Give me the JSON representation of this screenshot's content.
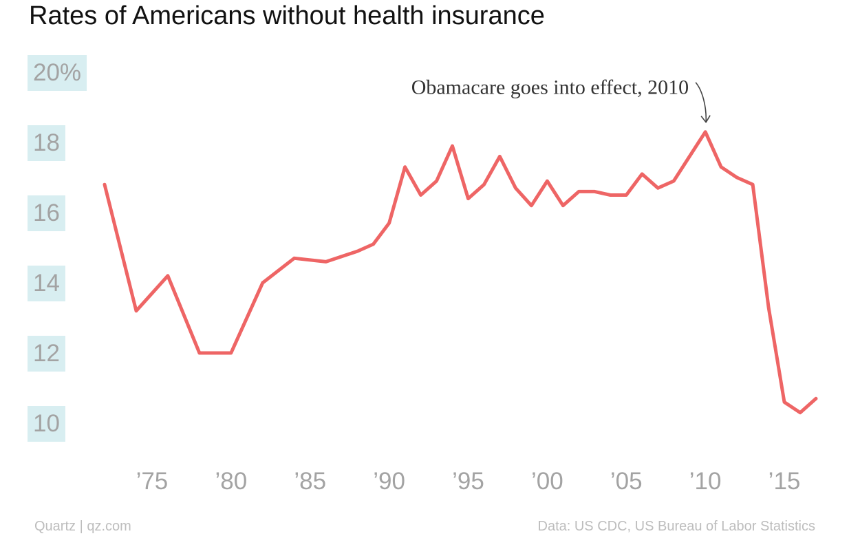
{
  "chart_data": {
    "type": "line",
    "title": "Rates of Americans without health insurance",
    "xlabel": "",
    "ylabel": "",
    "x": [
      1972,
      1974,
      1976,
      1978,
      1980,
      1982,
      1984,
      1986,
      1988,
      1989,
      1990,
      1991,
      1992,
      1993,
      1994,
      1995,
      1996,
      1997,
      1998,
      1999,
      2000,
      2001,
      2002,
      2003,
      2004,
      2005,
      2006,
      2007,
      2008,
      2010,
      2011,
      2012,
      2013,
      2014,
      2015,
      2016,
      2017
    ],
    "series": [
      {
        "values": [
          16.8,
          13.2,
          14.2,
          12.0,
          12.0,
          14.0,
          14.7,
          14.6,
          14.9,
          15.1,
          15.7,
          17.3,
          16.5,
          16.9,
          17.9,
          16.4,
          16.8,
          17.6,
          16.7,
          16.2,
          16.9,
          16.2,
          16.6,
          16.6,
          16.5,
          16.5,
          17.1,
          16.7,
          16.9,
          18.3,
          17.3,
          17.0,
          16.8,
          13.3,
          10.6,
          10.3,
          10.7
        ],
        "color": "#ee6565"
      }
    ],
    "ylim": [
      10,
      20
    ],
    "xlim": [
      1972,
      2017
    ],
    "y_ticks": [
      {
        "value": 20,
        "label": "20%"
      },
      {
        "value": 18,
        "label": "18"
      },
      {
        "value": 16,
        "label": "16"
      },
      {
        "value": 14,
        "label": "14"
      },
      {
        "value": 12,
        "label": "12"
      },
      {
        "value": 10,
        "label": "10"
      }
    ],
    "x_ticks": [
      {
        "value": 1975,
        "label": "’75"
      },
      {
        "value": 1980,
        "label": "’80"
      },
      {
        "value": 1985,
        "label": "’85"
      },
      {
        "value": 1990,
        "label": "’90"
      },
      {
        "value": 1995,
        "label": "’95"
      },
      {
        "value": 2000,
        "label": "’00"
      },
      {
        "value": 2005,
        "label": "’05"
      },
      {
        "value": 2010,
        "label": "’10"
      },
      {
        "value": 2015,
        "label": "’15"
      }
    ],
    "annotation": {
      "text": "Obamacare goes into effect, 2010",
      "x": 2010,
      "y": 18.3
    },
    "grid": false,
    "tick_label_background": "#d8eef1",
    "line_color": "#ee6565"
  },
  "footer": {
    "source_left": "Quartz | qz.com",
    "source_right": "Data: US CDC, US Bureau of Labor Statistics"
  }
}
